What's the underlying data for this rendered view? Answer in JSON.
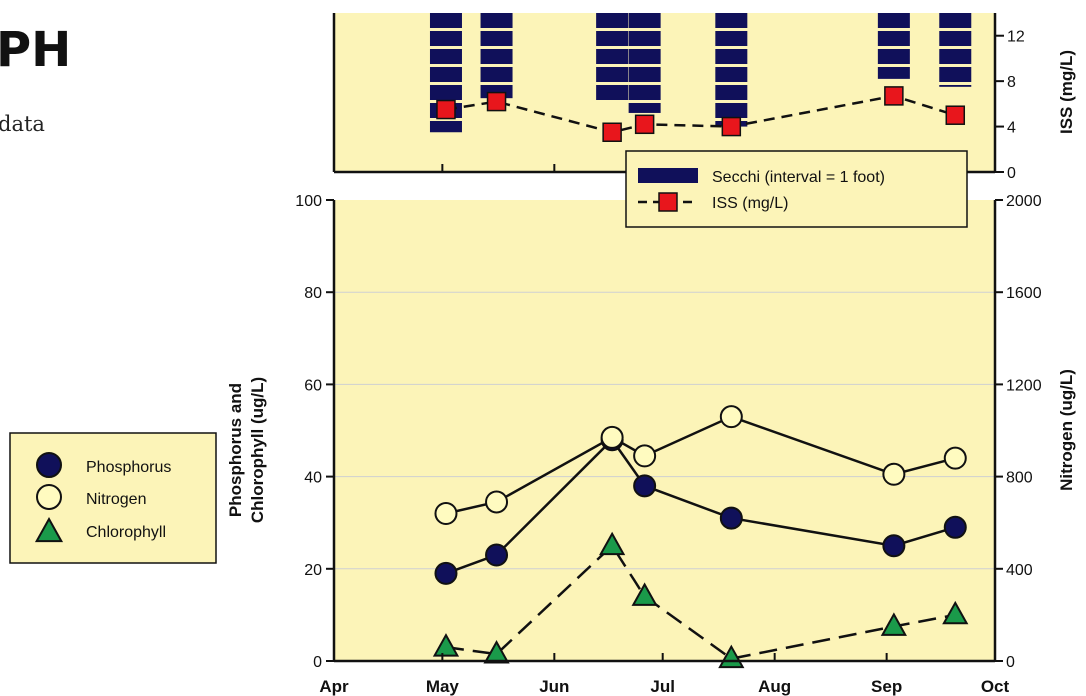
{
  "page": {
    "title_fragment": "PH",
    "subtitle_fragment": "data"
  },
  "chart_data": [
    {
      "type": "bar",
      "panel": "top",
      "x_axis": {
        "ticks": [
          "Apr",
          "May",
          "Jun",
          "Jul",
          "Aug",
          "Sep",
          "Oct"
        ],
        "range": [
          "Apr 1",
          "Oct 1"
        ]
      },
      "ylabel": "ISS (mg/L)",
      "ylim": [
        0,
        14
      ],
      "yticks": [
        0,
        4,
        8,
        12
      ],
      "legend": {
        "placement": "bottom-right",
        "entries": [
          {
            "label": "Secchi (interval = 1 foot)",
            "symbol": "bar",
            "color": "#10105a"
          },
          {
            "label": "ISS (mg/L)",
            "symbol": "dashed-square",
            "color": "#e8161c"
          }
        ]
      },
      "secchi": {
        "name": "Secchi (interval = 1 foot)",
        "color": "#10105a",
        "note": "bars hang from the top axis",
        "bars": [
          {
            "date": "May 2",
            "bottom_iss_units": 3.5
          },
          {
            "date": "May 16",
            "bottom_iss_units": 6.5
          },
          {
            "date": "Jun 17",
            "bottom_iss_units": 6.2
          },
          {
            "date": "Jun 26",
            "bottom_iss_units": 5.2
          },
          {
            "date": "Jul 20",
            "bottom_iss_units": 4.0
          },
          {
            "date": "Sep 3",
            "bottom_iss_units": 8.2
          },
          {
            "date": "Sep 20",
            "bottom_iss_units": 7.5
          }
        ]
      },
      "iss": {
        "name": "ISS (mg/L)",
        "color": "#e8161c",
        "points": [
          {
            "date": "May 2",
            "value": 5.5
          },
          {
            "date": "May 16",
            "value": 6.2
          },
          {
            "date": "Jun 17",
            "value": 3.5
          },
          {
            "date": "Jun 26",
            "value": 4.2
          },
          {
            "date": "Jul 20",
            "value": 4.0
          },
          {
            "date": "Sep 3",
            "value": 6.7
          },
          {
            "date": "Sep 20",
            "value": 5.0
          }
        ]
      }
    },
    {
      "type": "line",
      "panel": "bottom",
      "x_axis": {
        "ticks": [
          "Apr",
          "May",
          "Jun",
          "Jul",
          "Aug",
          "Sep",
          "Oct"
        ],
        "range": [
          "Apr 1",
          "Oct 1"
        ]
      },
      "ylabel_left": "Phosphorus and Chlorophyll (ug/L)",
      "ylabel_left_lines": [
        "Phosphorus and",
        "Chlorophyll (ug/L)"
      ],
      "ylabel_right": "Nitrogen (ug/L)",
      "ylim_left": [
        0,
        100
      ],
      "ylim_right": [
        0,
        2000
      ],
      "yticks_left": [
        0,
        20,
        40,
        60,
        80,
        100
      ],
      "yticks_right": [
        0,
        400,
        800,
        1200,
        1600,
        2000
      ],
      "grid": true,
      "legend": {
        "placement": "left, outside plot",
        "entries": [
          {
            "label": "Phosphorus",
            "symbol": "circle",
            "color": "#10105a"
          },
          {
            "label": "Nitrogen",
            "symbol": "circle",
            "color": "#fffbc0"
          },
          {
            "label": "Chlorophyll",
            "symbol": "triangle",
            "color": "#1a9a4a"
          }
        ]
      },
      "series": [
        {
          "name": "Phosphorus",
          "axis": "left",
          "style": "solid",
          "color": "#10105a",
          "points": [
            {
              "date": "May 2",
              "value": 19
            },
            {
              "date": "May 16",
              "value": 23
            },
            {
              "date": "Jun 17",
              "value": 48
            },
            {
              "date": "Jun 26",
              "value": 38
            },
            {
              "date": "Jul 20",
              "value": 31
            },
            {
              "date": "Sep 3",
              "value": 25
            },
            {
              "date": "Sep 20",
              "value": 29
            }
          ]
        },
        {
          "name": "Nitrogen",
          "axis": "right",
          "style": "solid",
          "color": "#fffbc0",
          "points": [
            {
              "date": "May 2",
              "value": 640
            },
            {
              "date": "May 16",
              "value": 690
            },
            {
              "date": "Jun 17",
              "value": 970
            },
            {
              "date": "Jun 26",
              "value": 890
            },
            {
              "date": "Jul 20",
              "value": 1060
            },
            {
              "date": "Sep 3",
              "value": 810
            },
            {
              "date": "Sep 20",
              "value": 880
            }
          ]
        },
        {
          "name": "Chlorophyll",
          "axis": "left",
          "style": "dashed",
          "color": "#1a9a4a",
          "points": [
            {
              "date": "May 2",
              "value": 3
            },
            {
              "date": "May 16",
              "value": 1.5
            },
            {
              "date": "Jun 17",
              "value": 25
            },
            {
              "date": "Jun 26",
              "value": 14
            },
            {
              "date": "Jul 20",
              "value": 0.5
            },
            {
              "date": "Sep 3",
              "value": 7.5
            },
            {
              "date": "Sep 20",
              "value": 10
            }
          ]
        }
      ]
    }
  ]
}
